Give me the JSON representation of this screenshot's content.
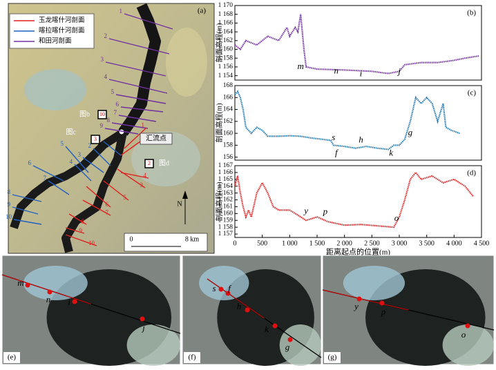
{
  "chart_data": [
    {
      "type": "line",
      "panel": "(b)",
      "ylabel": "剖面高程(m)",
      "xlim": [
        0,
        4500
      ],
      "ylim": [
        1153,
        1170
      ],
      "yticks": [
        {
          "value": 1154,
          "label": "1 154"
        },
        {
          "value": 1156,
          "label": "1 156"
        },
        {
          "value": 1158,
          "label": "1 158"
        },
        {
          "value": 1160,
          "label": "1 160"
        },
        {
          "value": 1162,
          "label": "1 162"
        },
        {
          "value": 1164,
          "label": "1 164"
        },
        {
          "value": 1166,
          "label": "1 166"
        },
        {
          "value": 1168,
          "label": "1 168"
        },
        {
          "value": 1170,
          "label": "1 170"
        }
      ],
      "x": [
        0,
        100,
        200,
        400,
        600,
        800,
        950,
        1000,
        1100,
        1150,
        1200,
        1230,
        1260,
        1300,
        1500,
        2000,
        2500,
        2800,
        3000,
        3100,
        3400,
        3700,
        4000,
        4200,
        4450
      ],
      "series": [
        {
          "color": "#7030a0",
          "values": [
            1161,
            1160,
            1162,
            1161,
            1163,
            1162,
            1165,
            1163,
            1165,
            1164,
            1168,
            1164,
            1160,
            1156,
            1155.5,
            1155.3,
            1155,
            1154.5,
            1155,
            1156.5,
            1157,
            1157,
            1157.5,
            1158,
            1158.5
          ]
        }
      ],
      "annotations": [
        {
          "text": "m",
          "x": 1200,
          "y": 1156
        },
        {
          "text": "n",
          "x": 1850,
          "y": 1155
        },
        {
          "text": "i",
          "x": 2300,
          "y": 1154.3
        },
        {
          "text": "j",
          "x": 3000,
          "y": 1154.8
        }
      ]
    },
    {
      "type": "line",
      "panel": "(c)",
      "ylabel": "剖面高程(m)",
      "xlim": [
        0,
        4500
      ],
      "ylim": [
        155.5,
        168
      ],
      "yticks": [
        156,
        158,
        160,
        162,
        164,
        166,
        168
      ],
      "x": [
        0,
        50,
        100,
        150,
        200,
        300,
        400,
        500,
        600,
        800,
        1000,
        1200,
        1400,
        1600,
        1750,
        1800,
        2000,
        2200,
        2400,
        2600,
        2800,
        2900,
        3000,
        3100,
        3200,
        3300,
        3400,
        3500,
        3600,
        3700,
        3800,
        3850,
        3950,
        4100
      ],
      "series": [
        {
          "color": "#1f77b4",
          "values": [
            166.5,
            167,
            166,
            164,
            161,
            160,
            161,
            160.5,
            159.5,
            159.5,
            159.6,
            159.5,
            159.2,
            159,
            158.8,
            158,
            157.8,
            157.5,
            157.8,
            157.5,
            157.3,
            158,
            158,
            159,
            162,
            166,
            165,
            166,
            165,
            162,
            165,
            161,
            160.5,
            160
          ]
        }
      ],
      "annotations": [
        {
          "text": "s",
          "x": 1800,
          "y": 159.2
        },
        {
          "text": "f",
          "x": 1850,
          "y": 156.6
        },
        {
          "text": "h",
          "x": 2300,
          "y": 158.8
        },
        {
          "text": "k",
          "x": 2850,
          "y": 156.6
        },
        {
          "text": "g",
          "x": 3200,
          "y": 160
        }
      ]
    },
    {
      "type": "line",
      "panel": "(d)",
      "ylabel": "剖面高程(m)",
      "xlabel": "距离起点的位置(m)",
      "xlim": [
        0,
        4500
      ],
      "ylim": [
        1156.5,
        1167
      ],
      "xticks": [
        0,
        500,
        {
          "value": 1000,
          "label": "1 000"
        },
        {
          "value": 1500,
          "label": "1 500"
        },
        {
          "value": 2000,
          "label": "2 000"
        },
        {
          "value": 2500,
          "label": "2 500"
        },
        {
          "value": 3000,
          "label": "3 000"
        },
        {
          "value": 3500,
          "label": "3 500"
        },
        {
          "value": 4000,
          "label": "4 000"
        },
        {
          "value": 4500,
          "label": "4 500"
        }
      ],
      "yticks": [
        {
          "value": 1157,
          "label": "1 157"
        },
        {
          "value": 1158,
          "label": "1 158"
        },
        {
          "value": 1159,
          "label": "1 159"
        },
        {
          "value": 1160,
          "label": "1 160"
        },
        {
          "value": 1161,
          "label": "1 161"
        },
        {
          "value": 1162,
          "label": "1 162"
        },
        {
          "value": 1163,
          "label": "1 163"
        },
        {
          "value": 1164,
          "label": "1 164"
        },
        {
          "value": 1165,
          "label": "1 165"
        },
        {
          "value": 1166,
          "label": "1 166"
        },
        {
          "value": 1167,
          "label": "1 167"
        }
      ],
      "x": [
        0,
        50,
        100,
        150,
        200,
        250,
        300,
        400,
        500,
        600,
        700,
        800,
        1000,
        1100,
        1200,
        1300,
        1500,
        1700,
        2000,
        2300,
        2600,
        2900,
        3000,
        3100,
        3200,
        3300,
        3400,
        3600,
        3800,
        4000,
        4200,
        4300,
        4350
      ],
      "series": [
        {
          "color": "#e02020",
          "values": [
            1164,
            1165.5,
            1163,
            1161,
            1159.5,
            1160.5,
            1159.5,
            1163,
            1164.5,
            1163,
            1161,
            1160.5,
            1160.5,
            1160,
            1159.5,
            1159,
            1159.5,
            1158.8,
            1158.3,
            1158.4,
            1158.2,
            1158,
            1159.5,
            1162,
            1165,
            1166,
            1165,
            1165.5,
            1164.5,
            1165,
            1164,
            1163,
            1162.5
          ]
        }
      ],
      "annotations": [
        {
          "text": "y",
          "x": 1300,
          "y": 1160.3
        },
        {
          "text": "p",
          "x": 1650,
          "y": 1160.2
        },
        {
          "text": "o",
          "x": 2950,
          "y": 1159.2
        }
      ]
    }
  ],
  "map": {
    "panel": "(a)",
    "legend": [
      {
        "name": "玉龙喀什河剖面",
        "color": "#e02020"
      },
      {
        "name": "喀拉喀什河剖面",
        "color": "#2060c0"
      },
      {
        "name": "和田河剖面",
        "color": "#7030a0"
      }
    ],
    "callouts": [
      "图b",
      "图c",
      "图d"
    ],
    "callout_numbers": [
      "10",
      "3",
      "2"
    ],
    "confluence": "汇流点",
    "north": "N",
    "scale": [
      "0",
      "8 km"
    ],
    "profiles": [
      {
        "color": "#7030a0",
        "labels": [
          "1",
          "2",
          "3",
          "4",
          "5",
          "6",
          "7",
          "8",
          "9"
        ]
      },
      {
        "color": "#2060c0",
        "labels": [
          "1",
          "2",
          "3",
          "4",
          "5",
          "6",
          "7",
          "8",
          "9",
          "10"
        ]
      },
      {
        "color": "#e02020",
        "labels": [
          "1",
          "2",
          "3",
          "4",
          "5",
          "6",
          "7",
          "8",
          "9",
          "10"
        ]
      }
    ]
  },
  "photos": [
    {
      "panel": "(e)",
      "points": [
        "m",
        "n",
        "i",
        "j"
      ]
    },
    {
      "panel": "(f)",
      "points": [
        "s",
        "f",
        "h",
        "k",
        "g"
      ]
    },
    {
      "panel": "(g)",
      "points": [
        "y",
        "p",
        "o"
      ]
    }
  ]
}
